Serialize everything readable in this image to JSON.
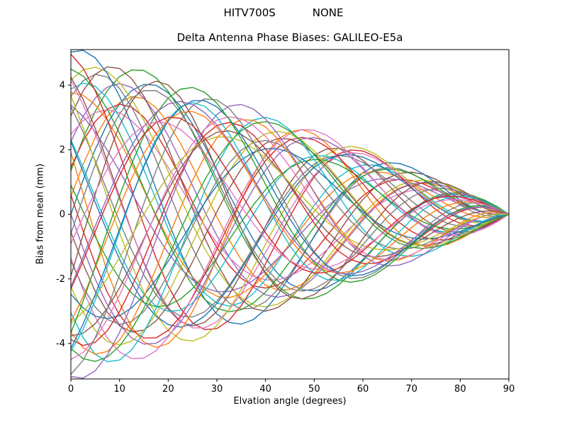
{
  "header": {
    "title_left": "HITV700S",
    "title_right": "NONE"
  },
  "chart_data": {
    "type": "line",
    "title": "Delta Antenna Phase Biases: GALILEO-E5a",
    "xlabel": "Elvation angle (degrees)",
    "ylabel": "Bias from mean (mm)",
    "xlim": [
      0,
      90
    ],
    "ylim": [
      -5.1,
      5.1
    ],
    "x_ticks": [
      0,
      10,
      20,
      30,
      40,
      50,
      60,
      70,
      80,
      90
    ],
    "y_ticks": [
      -4,
      -2,
      0,
      2,
      4
    ],
    "grid": false,
    "legend": "none",
    "x_step": 2.5,
    "convergence_point": [
      90,
      0
    ],
    "palette": [
      "#1f77b4",
      "#ff7f0e",
      "#2ca02c",
      "#d62728",
      "#9467bd",
      "#8c564b",
      "#e377c2",
      "#7f7f7f",
      "#bcbd22",
      "#17becf"
    ],
    "series_model": {
      "count": 48,
      "phase_step_deg": 7.5,
      "amp_pattern": [
        4.8,
        4.2,
        5.2,
        3.8,
        4.5,
        5.0,
        3.5,
        4.6
      ],
      "cycles_pattern": [
        1.3,
        1.45,
        1.25,
        1.5,
        1.35,
        1.4
      ],
      "damp_power": 0.85,
      "formula": "y = amp * sin(2*pi*cycles*x/90 + phase) * (1 - x/90)^damp_power"
    },
    "axis_color": "#000000",
    "line_width": 1.4
  }
}
